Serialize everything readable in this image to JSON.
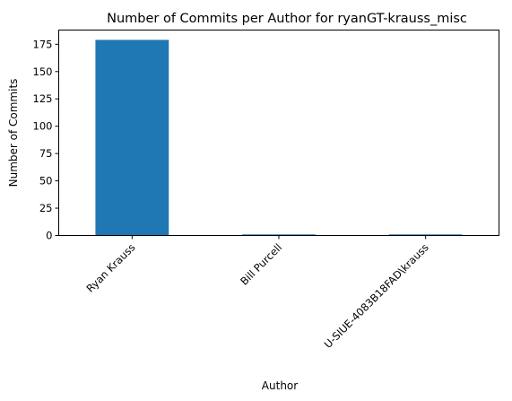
{
  "chart_data": {
    "type": "bar",
    "title": "Number of Commits per Author for ryanGT-krauss_misc",
    "xlabel": "Author",
    "ylabel": "Number of Commits",
    "categories": [
      "Ryan Krauss",
      "Bill Purcell",
      "U-SIUE-4083B18FAD\\krauss"
    ],
    "values": [
      179,
      1,
      1
    ],
    "ylim": [
      0,
      188
    ],
    "yticks": [
      0,
      25,
      50,
      75,
      100,
      125,
      150,
      175
    ],
    "grid": false,
    "legend": "none",
    "bar_color": "#1f77b4"
  }
}
